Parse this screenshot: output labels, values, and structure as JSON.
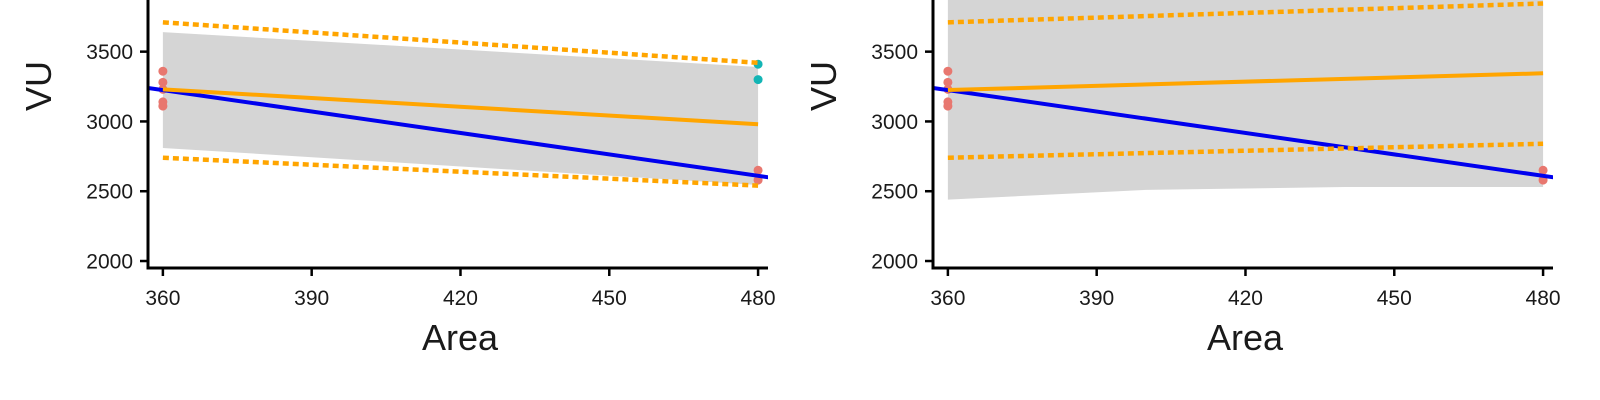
{
  "chart_data": [
    {
      "type": "line",
      "xlabel": "Area",
      "ylabel": "VU",
      "xlim": [
        357,
        482
      ],
      "ylim": [
        1950,
        3870
      ],
      "x_ticks": [
        360,
        390,
        420,
        450,
        480
      ],
      "y_ticks": [
        2000,
        2500,
        3000,
        3500
      ],
      "grid": false,
      "band": {
        "color": "#d5d5d5",
        "x": [
          360,
          480
        ],
        "lower": [
          2810,
          2545
        ],
        "upper": [
          3640,
          3390
        ]
      },
      "series": [
        {
          "style": "solid",
          "color": "#0000ee",
          "x": [
            357,
            483
          ],
          "y": [
            3240,
            2595
          ]
        },
        {
          "style": "solid",
          "color": "#ffa500",
          "x": [
            360,
            480
          ],
          "y": [
            3230,
            2980
          ]
        },
        {
          "style": "dotted",
          "color": "#ffa500",
          "x": [
            360,
            480
          ],
          "y": [
            3710,
            3420
          ]
        },
        {
          "style": "dotted",
          "color": "#ffa500",
          "x": [
            360,
            480
          ],
          "y": [
            2740,
            2540
          ]
        }
      ],
      "points": [
        {
          "x": 360,
          "y": 3360,
          "color": "#e8776f"
        },
        {
          "x": 360,
          "y": 3280,
          "color": "#e8776f"
        },
        {
          "x": 360,
          "y": 3230,
          "color": "#e8776f"
        },
        {
          "x": 360,
          "y": 3140,
          "color": "#e8776f"
        },
        {
          "x": 360,
          "y": 3110,
          "color": "#e8776f"
        },
        {
          "x": 480,
          "y": 3410,
          "color": "#13b5b5"
        },
        {
          "x": 480,
          "y": 3300,
          "color": "#13b5b5"
        },
        {
          "x": 480,
          "y": 2650,
          "color": "#e8776f"
        },
        {
          "x": 480,
          "y": 2580,
          "color": "#e8776f"
        }
      ]
    },
    {
      "type": "line",
      "xlabel": "Area",
      "ylabel": "VU",
      "xlim": [
        357,
        482
      ],
      "ylim": [
        1950,
        3870
      ],
      "x_ticks": [
        360,
        390,
        420,
        450,
        480
      ],
      "y_ticks": [
        2000,
        2500,
        3000,
        3500
      ],
      "grid": false,
      "band": {
        "color": "#d5d5d5",
        "x": [
          360,
          400,
          440,
          480
        ],
        "lower": [
          2440,
          2510,
          2530,
          2530
        ],
        "upper": [
          3890,
          3890,
          3890,
          3890
        ]
      },
      "series": [
        {
          "style": "solid",
          "color": "#0000ee",
          "x": [
            357,
            483
          ],
          "y": [
            3240,
            2595
          ]
        },
        {
          "style": "solid",
          "color": "#ffa500",
          "x": [
            360,
            480
          ],
          "y": [
            3225,
            3345
          ]
        },
        {
          "style": "dotted",
          "color": "#ffa500",
          "x": [
            360,
            480
          ],
          "y": [
            3710,
            3845
          ]
        },
        {
          "style": "dotted",
          "color": "#ffa500",
          "x": [
            360,
            480
          ],
          "y": [
            2740,
            2840
          ]
        }
      ],
      "points": [
        {
          "x": 360,
          "y": 3360,
          "color": "#e8776f"
        },
        {
          "x": 360,
          "y": 3280,
          "color": "#e8776f"
        },
        {
          "x": 360,
          "y": 3230,
          "color": "#e8776f"
        },
        {
          "x": 360,
          "y": 3140,
          "color": "#e8776f"
        },
        {
          "x": 360,
          "y": 3110,
          "color": "#e8776f"
        },
        {
          "x": 480,
          "y": 2650,
          "color": "#e8776f"
        },
        {
          "x": 480,
          "y": 2580,
          "color": "#e8776f"
        }
      ]
    }
  ]
}
